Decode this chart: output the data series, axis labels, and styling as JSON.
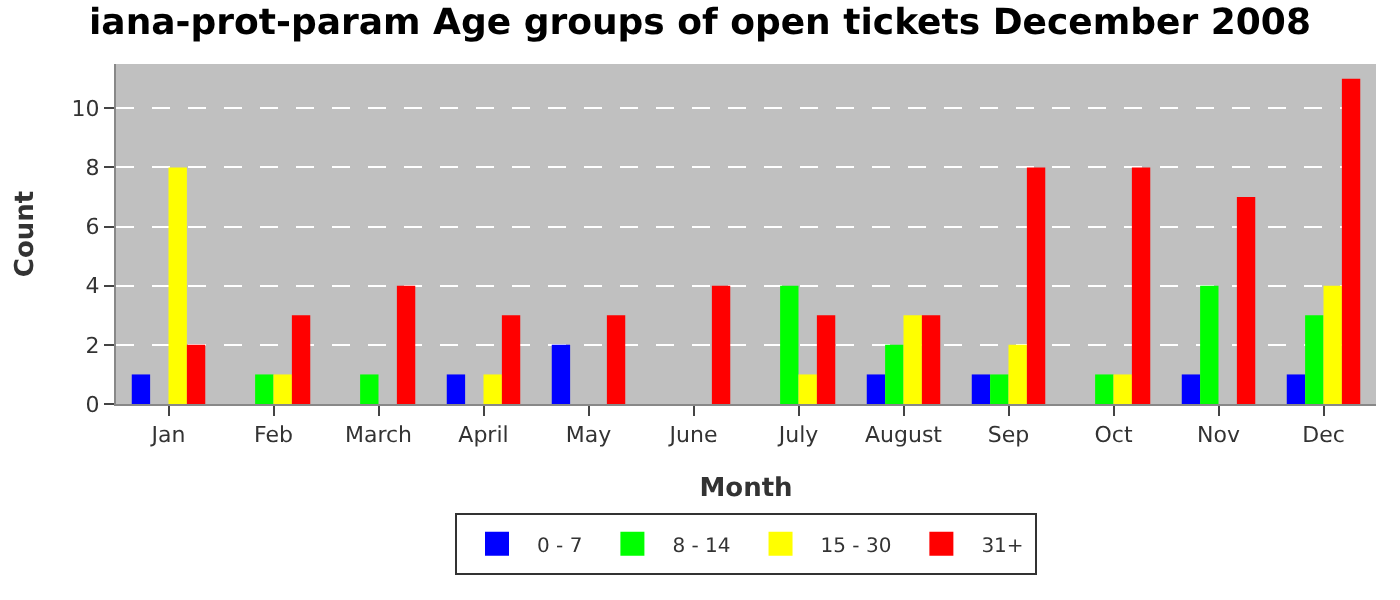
{
  "chart_data": {
    "type": "bar",
    "title": "iana-prot-param Age groups of open tickets December 2008",
    "xlabel": "Month",
    "ylabel": "Count",
    "categories": [
      "Jan",
      "Feb",
      "March",
      "April",
      "May",
      "June",
      "July",
      "August",
      "Sep",
      "Oct",
      "Nov",
      "Dec"
    ],
    "series": [
      {
        "name": "0 - 7",
        "color": "#0000ff",
        "values": [
          1,
          0,
          0,
          1,
          2,
          0,
          0,
          1,
          1,
          0,
          1,
          1
        ]
      },
      {
        "name": "8 - 14",
        "color": "#00ff00",
        "values": [
          0,
          1,
          1,
          0,
          0,
          0,
          4,
          2,
          1,
          1,
          4,
          3
        ]
      },
      {
        "name": "15 - 30",
        "color": "#ffff00",
        "values": [
          8,
          1,
          0,
          1,
          0,
          0,
          1,
          3,
          2,
          1,
          0,
          4
        ]
      },
      {
        "name": "31+",
        "color": "#ff0000",
        "values": [
          2,
          3,
          4,
          3,
          3,
          4,
          3,
          3,
          8,
          8,
          7,
          11
        ]
      }
    ],
    "ylim": [
      0,
      11.5
    ],
    "yticks": [
      0,
      2,
      4,
      6,
      8,
      10
    ],
    "grid": "y",
    "legend": "bottom"
  }
}
